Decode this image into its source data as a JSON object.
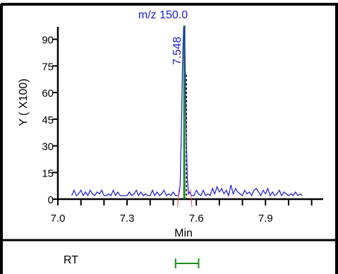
{
  "chart_data": {
    "type": "line",
    "title": "m/z  150.0",
    "xlabel": "Min",
    "ylabel": "Y ( X100)",
    "xlim": [
      7.0,
      8.15
    ],
    "ylim": [
      0,
      97
    ],
    "x_ticks": [
      "7.0",
      "7.3",
      "7.6",
      "7.9"
    ],
    "x_tick_values": [
      7.0,
      7.3,
      7.6,
      7.9
    ],
    "y_ticks": [
      "0",
      "15",
      "30",
      "45",
      "60",
      "75",
      "90"
    ],
    "y_tick_values": [
      0,
      15,
      30,
      45,
      60,
      75,
      90
    ],
    "grid": false,
    "series": [
      {
        "color": "#1a1adc",
        "x": [
          7.06,
          7.07,
          7.08,
          7.09,
          7.1,
          7.11,
          7.12,
          7.13,
          7.14,
          7.15,
          7.16,
          7.17,
          7.18,
          7.19,
          7.2,
          7.21,
          7.22,
          7.23,
          7.24,
          7.25,
          7.26,
          7.27,
          7.28,
          7.29,
          7.3,
          7.31,
          7.32,
          7.33,
          7.34,
          7.35,
          7.36,
          7.37,
          7.38,
          7.39,
          7.4,
          7.41,
          7.42,
          7.43,
          7.44,
          7.45,
          7.46,
          7.47,
          7.48,
          7.49,
          7.5,
          7.51,
          7.52,
          7.525,
          7.53,
          7.535,
          7.54,
          7.545,
          7.548,
          7.551,
          7.556,
          7.561,
          7.566,
          7.57,
          7.58,
          7.59,
          7.6,
          7.61,
          7.62,
          7.63,
          7.64,
          7.65,
          7.66,
          7.67,
          7.68,
          7.69,
          7.7,
          7.71,
          7.72,
          7.73,
          7.74,
          7.75,
          7.76,
          7.77,
          7.78,
          7.79,
          7.8,
          7.81,
          7.82,
          7.83,
          7.84,
          7.85,
          7.86,
          7.87,
          7.88,
          7.89,
          7.9,
          7.91,
          7.92,
          7.93,
          7.94,
          7.95,
          7.96,
          7.97,
          7.98,
          7.99,
          8.0,
          8.01,
          8.02,
          8.03,
          8.04,
          8.05,
          8.06
        ],
        "y": [
          2,
          5,
          2,
          3,
          5,
          2,
          4,
          2,
          5,
          3,
          2,
          4,
          3,
          5,
          2,
          2,
          3,
          2,
          5,
          2,
          4,
          2,
          2,
          2,
          2,
          4,
          2,
          3,
          5,
          2,
          4,
          2,
          3,
          2,
          2,
          5,
          2,
          4,
          2,
          3,
          5,
          2,
          3,
          2,
          4,
          2,
          2,
          3,
          8,
          35,
          75,
          96,
          97,
          80,
          40,
          12,
          3,
          4,
          2,
          2,
          5,
          3,
          2,
          5,
          2,
          3,
          2,
          6,
          3,
          7,
          4,
          6,
          3,
          5,
          2,
          8,
          3,
          6,
          4,
          3,
          2,
          5,
          3,
          4,
          2,
          5,
          6,
          4,
          2,
          5,
          3,
          6,
          2,
          4,
          2,
          3,
          5,
          2,
          4,
          3,
          2,
          3,
          2,
          4,
          2,
          3,
          2
        ]
      }
    ],
    "peak_label": "7.548",
    "peak_marker_color": "#1f8c1f",
    "integration_color": "#e85050",
    "rt_label": "RT"
  }
}
